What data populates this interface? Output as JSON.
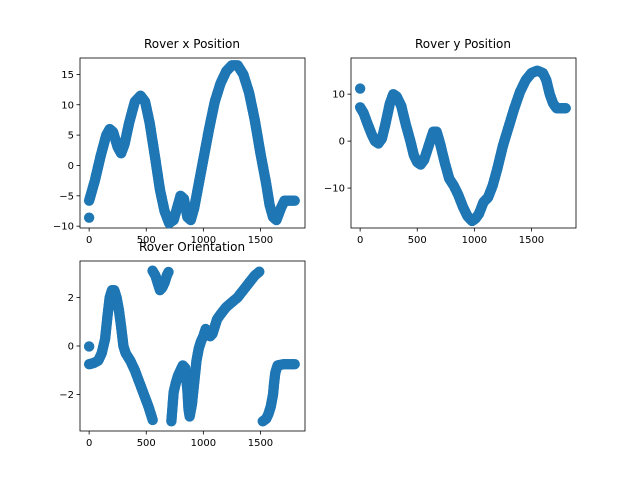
{
  "figure": {
    "background": "#ffffff",
    "marker_color": "#1f77b4"
  },
  "chart_data": [
    {
      "type": "scatter",
      "title": "Rover x Position",
      "xlim": [
        -80,
        1890
      ],
      "ylim": [
        -10.3,
        17.7
      ],
      "xticks": [
        0,
        500,
        1000,
        1500
      ],
      "yticks": [
        -10,
        -5,
        0,
        5,
        10,
        15
      ],
      "outliers": [
        [
          0,
          -8.6
        ]
      ],
      "path": [
        [
          0,
          -5.8
        ],
        [
          50,
          -2.5
        ],
        [
          100,
          1.5
        ],
        [
          150,
          5.0
        ],
        [
          180,
          6.0
        ],
        [
          210,
          5.5
        ],
        [
          250,
          3.0
        ],
        [
          280,
          2.0
        ],
        [
          310,
          3.5
        ],
        [
          350,
          7.0
        ],
        [
          400,
          10.5
        ],
        [
          450,
          11.5
        ],
        [
          490,
          10.5
        ],
        [
          530,
          7.0
        ],
        [
          580,
          1.0
        ],
        [
          620,
          -4.0
        ],
        [
          660,
          -7.5
        ],
        [
          700,
          -9.5
        ],
        [
          740,
          -9.0
        ],
        [
          770,
          -7.0
        ],
        [
          800,
          -5.0
        ],
        [
          830,
          -5.5
        ],
        [
          860,
          -8.5
        ],
        [
          890,
          -9.0
        ],
        [
          920,
          -7.0
        ],
        [
          960,
          -3.0
        ],
        [
          1000,
          1.0
        ],
        [
          1050,
          6.0
        ],
        [
          1100,
          10.5
        ],
        [
          1150,
          13.5
        ],
        [
          1200,
          15.5
        ],
        [
          1250,
          16.5
        ],
        [
          1300,
          16.5
        ],
        [
          1350,
          15.0
        ],
        [
          1400,
          12.0
        ],
        [
          1450,
          7.5
        ],
        [
          1500,
          2.0
        ],
        [
          1550,
          -3.0
        ],
        [
          1580,
          -6.5
        ],
        [
          1610,
          -8.5
        ],
        [
          1640,
          -9.0
        ],
        [
          1680,
          -7.0
        ],
        [
          1710,
          -5.8
        ],
        [
          1750,
          -5.8
        ],
        [
          1800,
          -5.8
        ]
      ]
    },
    {
      "type": "scatter",
      "title": "Rover y Position",
      "xlim": [
        -80,
        1890
      ],
      "ylim": [
        -18.5,
        17.7
      ],
      "xticks": [
        0,
        500,
        1000,
        1500
      ],
      "yticks": [
        -10,
        0,
        10
      ],
      "outliers": [
        [
          0,
          11.2
        ]
      ],
      "path": [
        [
          0,
          7.2
        ],
        [
          30,
          6.0
        ],
        [
          60,
          4.0
        ],
        [
          100,
          1.5
        ],
        [
          130,
          0.0
        ],
        [
          160,
          -0.5
        ],
        [
          190,
          0.5
        ],
        [
          220,
          3.5
        ],
        [
          260,
          8.0
        ],
        [
          290,
          10.0
        ],
        [
          320,
          9.5
        ],
        [
          360,
          7.5
        ],
        [
          400,
          3.5
        ],
        [
          440,
          0.0
        ],
        [
          470,
          -3.0
        ],
        [
          500,
          -4.5
        ],
        [
          530,
          -5.0
        ],
        [
          560,
          -4.0
        ],
        [
          600,
          -1.0
        ],
        [
          640,
          2.0
        ],
        [
          670,
          2.0
        ],
        [
          700,
          -0.5
        ],
        [
          740,
          -4.5
        ],
        [
          780,
          -8.0
        ],
        [
          820,
          -9.5
        ],
        [
          860,
          -11.5
        ],
        [
          900,
          -14.0
        ],
        [
          940,
          -16.0
        ],
        [
          980,
          -17.0
        ],
        [
          1010,
          -16.5
        ],
        [
          1040,
          -15.5
        ],
        [
          1080,
          -13.0
        ],
        [
          1120,
          -12.0
        ],
        [
          1160,
          -9.5
        ],
        [
          1200,
          -6.0
        ],
        [
          1250,
          -1.0
        ],
        [
          1300,
          3.0
        ],
        [
          1350,
          7.0
        ],
        [
          1400,
          10.5
        ],
        [
          1450,
          13.0
        ],
        [
          1500,
          14.5
        ],
        [
          1550,
          15.0
        ],
        [
          1600,
          14.5
        ],
        [
          1630,
          13.0
        ],
        [
          1660,
          10.0
        ],
        [
          1690,
          8.0
        ],
        [
          1720,
          7.0
        ],
        [
          1760,
          7.0
        ],
        [
          1800,
          7.0
        ]
      ]
    },
    {
      "type": "scatter",
      "title": "Rover Orientation",
      "xlim": [
        -80,
        1890
      ],
      "ylim": [
        -3.5,
        3.5
      ],
      "xticks": [
        0,
        500,
        1000,
        1500
      ],
      "yticks": [
        -2,
        0,
        2
      ],
      "outliers": [
        [
          0,
          -0.02
        ]
      ],
      "path": [
        [
          0,
          -0.75
        ],
        [
          40,
          -0.7
        ],
        [
          80,
          -0.6
        ],
        [
          110,
          -0.3
        ],
        [
          140,
          0.3
        ],
        [
          160,
          1.2
        ],
        [
          180,
          2.0
        ],
        [
          200,
          2.3
        ],
        [
          220,
          2.3
        ],
        [
          240,
          2.0
        ],
        [
          260,
          1.5
        ],
        [
          280,
          0.8
        ],
        [
          300,
          0.0
        ],
        [
          320,
          -0.3
        ],
        [
          360,
          -0.6
        ],
        [
          400,
          -1.0
        ],
        [
          440,
          -1.5
        ],
        [
          480,
          -2.0
        ],
        [
          520,
          -2.5
        ],
        [
          560,
          -3.1
        ],
        [
          555,
          3.1
        ],
        [
          580,
          2.9
        ],
        [
          600,
          2.6
        ],
        [
          620,
          2.3
        ],
        [
          640,
          2.4
        ],
        [
          660,
          2.6
        ],
        [
          680,
          2.9
        ],
        [
          700,
          3.1
        ],
        [
          720,
          -3.1
        ],
        [
          730,
          -2.5
        ],
        [
          740,
          -1.9
        ],
        [
          760,
          -1.5
        ],
        [
          780,
          -1.2
        ],
        [
          800,
          -1.0
        ],
        [
          820,
          -0.8
        ],
        [
          840,
          -0.9
        ],
        [
          860,
          -1.8
        ],
        [
          870,
          -2.6
        ],
        [
          880,
          -2.9
        ],
        [
          900,
          -2.4
        ],
        [
          920,
          -1.5
        ],
        [
          940,
          -0.6
        ],
        [
          960,
          -0.1
        ],
        [
          980,
          0.2
        ],
        [
          1000,
          0.4
        ],
        [
          1020,
          0.7
        ],
        [
          1040,
          0.6
        ],
        [
          1060,
          0.4
        ],
        [
          1080,
          0.5
        ],
        [
          1100,
          0.8
        ],
        [
          1120,
          1.1
        ],
        [
          1150,
          1.3
        ],
        [
          1200,
          1.6
        ],
        [
          1250,
          1.8
        ],
        [
          1300,
          2.0
        ],
        [
          1350,
          2.3
        ],
        [
          1400,
          2.6
        ],
        [
          1450,
          2.9
        ],
        [
          1500,
          3.1
        ],
        [
          1520,
          -3.1
        ],
        [
          1550,
          -3.0
        ],
        [
          1570,
          -2.8
        ],
        [
          1590,
          -2.5
        ],
        [
          1610,
          -2.0
        ],
        [
          1620,
          -1.5
        ],
        [
          1630,
          -1.1
        ],
        [
          1650,
          -0.8
        ],
        [
          1700,
          -0.75
        ],
        [
          1750,
          -0.75
        ],
        [
          1800,
          -0.75
        ]
      ]
    }
  ]
}
